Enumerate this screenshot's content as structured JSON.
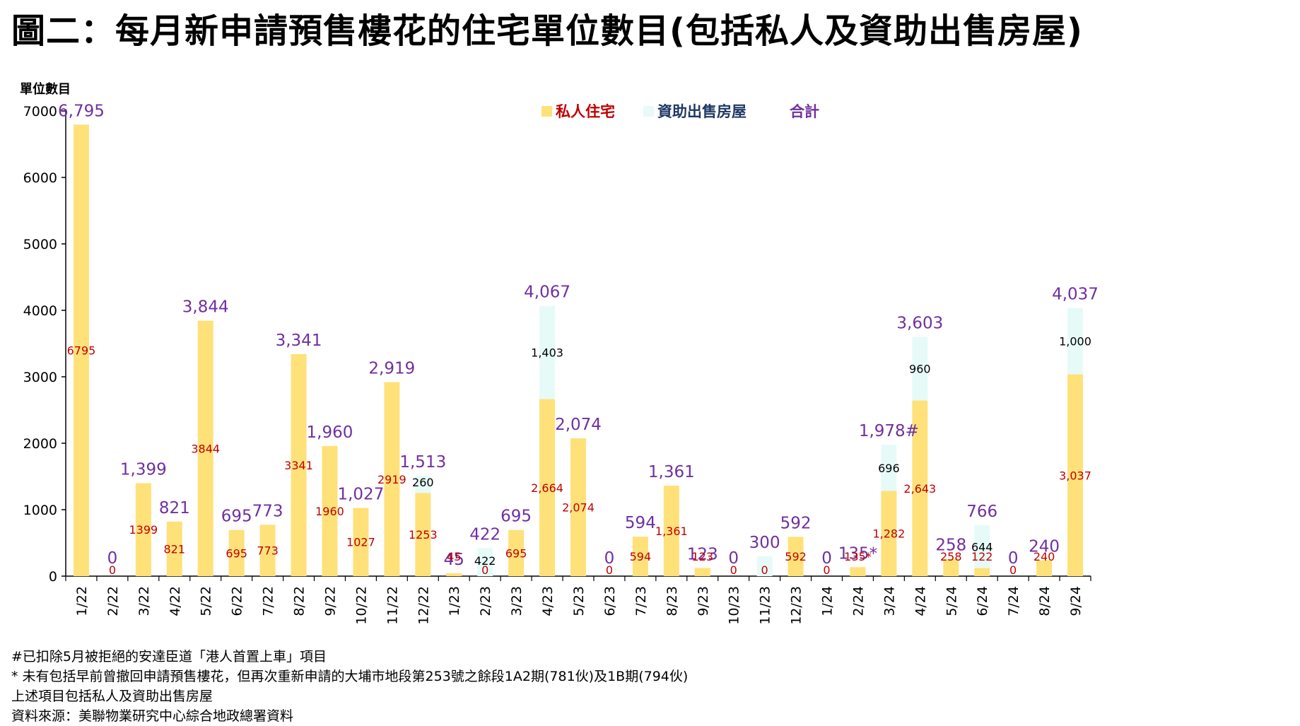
{
  "title": "圖二：每月新申請預售樓花的住宅單位數目(包括私人及資助出售房屋)",
  "colors": {
    "private": "#FFE17A",
    "subsidised": "#E6FBF8",
    "total_label": "#7030A0",
    "private_label": "#C00000",
    "subsidised_label": "#000000"
  },
  "chart_data": {
    "type": "bar",
    "stacked": true,
    "ylabel": "單位數目",
    "ylim": [
      0,
      7000
    ],
    "yticks": [
      0,
      1000,
      2000,
      3000,
      4000,
      5000,
      6000,
      7000
    ],
    "legend_position": "top",
    "legend": [
      "私人住宅",
      "資助出售房屋",
      "合計"
    ],
    "categories": [
      "1/22",
      "2/22",
      "3/22",
      "4/22",
      "5/22",
      "6/22",
      "7/22",
      "8/22",
      "9/22",
      "10/22",
      "11/22",
      "12/22",
      "1/23",
      "2/23",
      "3/23",
      "4/23",
      "5/23",
      "6/23",
      "7/23",
      "8/23",
      "9/23",
      "10/23",
      "11/23",
      "12/23",
      "1/24",
      "2/24",
      "3/24",
      "4/24",
      "5/24",
      "6/24",
      "7/24",
      "8/24",
      "9/24"
    ],
    "series": [
      {
        "name": "私人住宅",
        "values": [
          6795,
          0,
          1399,
          821,
          3844,
          695,
          773,
          3341,
          1960,
          1027,
          2919,
          1253,
          45,
          0,
          695,
          2664,
          2074,
          0,
          594,
          1361,
          123,
          0,
          0,
          592,
          0,
          135,
          1282,
          2643,
          258,
          122,
          0,
          240,
          3037
        ]
      },
      {
        "name": "資助出售房屋",
        "values": [
          0,
          0,
          0,
          0,
          0,
          0,
          0,
          0,
          0,
          0,
          0,
          260,
          0,
          422,
          0,
          1403,
          0,
          0,
          0,
          0,
          0,
          0,
          300,
          0,
          0,
          0,
          696,
          960,
          0,
          644,
          0,
          0,
          1000
        ]
      }
    ],
    "private_labels": [
      "6795",
      "0",
      "1399",
      "821",
      "3844",
      "695",
      "773",
      "3341",
      "1960",
      "1027",
      "2919",
      "1253",
      "45",
      "0",
      "695",
      "2,664",
      "2,074",
      "0",
      "594",
      "1,361",
      "123",
      "0",
      "0",
      "592",
      "0",
      "135*",
      "1,282",
      "2,643",
      "258",
      "122",
      "0",
      "240",
      "3,037"
    ],
    "subsidised_labels": [
      "",
      "",
      "",
      "",
      "",
      "",
      "",
      "",
      "",
      "",
      "",
      "260",
      "",
      "422",
      "",
      "1,403",
      "",
      "",
      "",
      "",
      "",
      "",
      "",
      "",
      "",
      "",
      "696",
      "960",
      "",
      "644",
      "",
      "",
      "1,000"
    ],
    "total_labels": [
      "6,795",
      "0",
      "1,399",
      "821",
      "3,844",
      "695",
      "773",
      "3,341",
      "1,960",
      "1,027",
      "2,919",
      "1,513",
      "45",
      "422",
      "695",
      "4,067",
      "2,074",
      "0",
      "594",
      "1,361",
      "123",
      "0",
      "300",
      "592",
      "0",
      "135*",
      "1,978#",
      "3,603",
      "258",
      "766",
      "0",
      "240",
      "4,037"
    ]
  },
  "notes": [
    "#已扣除5月被拒絕的安達臣道「港人首置上車」項目",
    "* 未有包括早前曾撤回申請預售樓花，但再次重新申請的大埔市地段第253號之餘段1A2期(781伙)及1B期(794伙)",
    "上述項目包括私人及資助出售房屋",
    "資料來源：美聯物業研究中心綜合地政總署資料"
  ]
}
